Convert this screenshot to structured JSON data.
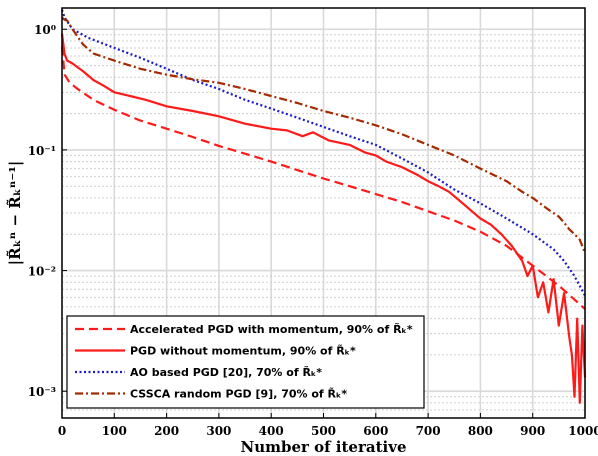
{
  "chart_data": {
    "type": "line",
    "xlabel": "Number of iterative",
    "ylabel": "|R̃ₖⁿ − R̃ₖⁿ⁻¹|",
    "xlim": [
      0,
      1000
    ],
    "ylim": [
      0.0006,
      1.5
    ],
    "yscale": "log",
    "grid": true,
    "legend_position": "bottom-left",
    "x_ticks": [
      "0",
      "100",
      "200",
      "300",
      "400",
      "500",
      "600",
      "700",
      "800",
      "900",
      "1000"
    ],
    "y_ticks": [
      {
        "value": 1,
        "label": "10⁰"
      },
      {
        "value": 0.1,
        "label": "10⁻¹"
      },
      {
        "value": 0.01,
        "label": "10⁻²"
      },
      {
        "value": 0.001,
        "label": "10⁻³"
      }
    ],
    "series": [
      {
        "name": "Accelerated PGD with momentum, 90% of R̃ₖ*",
        "color": "#ff1a1a",
        "dash": "dashed",
        "points": [
          [
            0,
            0.72
          ],
          [
            5,
            0.42
          ],
          [
            15,
            0.36
          ],
          [
            30,
            0.32
          ],
          [
            60,
            0.26
          ],
          [
            100,
            0.215
          ],
          [
            150,
            0.175
          ],
          [
            200,
            0.15
          ],
          [
            250,
            0.128
          ],
          [
            300,
            0.108
          ],
          [
            350,
            0.093
          ],
          [
            400,
            0.08
          ],
          [
            450,
            0.068
          ],
          [
            500,
            0.058
          ],
          [
            550,
            0.05
          ],
          [
            600,
            0.043
          ],
          [
            650,
            0.037
          ],
          [
            700,
            0.031
          ],
          [
            750,
            0.026
          ],
          [
            800,
            0.021
          ],
          [
            850,
            0.016
          ],
          [
            900,
            0.011
          ],
          [
            950,
            0.0075
          ],
          [
            975,
            0.006
          ],
          [
            1000,
            0.0048
          ]
        ]
      },
      {
        "name": "PGD without momentum, 90% of R̃ₖ*",
        "color": "#ff1a1a",
        "dash": "solid",
        "points": [
          [
            0,
            0.92
          ],
          [
            5,
            0.62
          ],
          [
            10,
            0.55
          ],
          [
            20,
            0.52
          ],
          [
            40,
            0.45
          ],
          [
            60,
            0.38
          ],
          [
            80,
            0.34
          ],
          [
            100,
            0.3
          ],
          [
            130,
            0.28
          ],
          [
            160,
            0.26
          ],
          [
            200,
            0.23
          ],
          [
            250,
            0.21
          ],
          [
            300,
            0.19
          ],
          [
            350,
            0.165
          ],
          [
            400,
            0.15
          ],
          [
            430,
            0.145
          ],
          [
            460,
            0.13
          ],
          [
            480,
            0.14
          ],
          [
            510,
            0.12
          ],
          [
            550,
            0.11
          ],
          [
            580,
            0.095
          ],
          [
            600,
            0.09
          ],
          [
            620,
            0.08
          ],
          [
            650,
            0.072
          ],
          [
            680,
            0.062
          ],
          [
            700,
            0.055
          ],
          [
            720,
            0.05
          ],
          [
            740,
            0.045
          ],
          [
            760,
            0.038
          ],
          [
            780,
            0.032
          ],
          [
            800,
            0.027
          ],
          [
            820,
            0.024
          ],
          [
            840,
            0.02
          ],
          [
            860,
            0.016
          ],
          [
            880,
            0.012
          ],
          [
            890,
            0.009
          ],
          [
            900,
            0.011
          ],
          [
            910,
            0.006
          ],
          [
            920,
            0.008
          ],
          [
            930,
            0.0045
          ],
          [
            940,
            0.0085
          ],
          [
            950,
            0.0035
          ],
          [
            960,
            0.0065
          ],
          [
            970,
            0.0028
          ],
          [
            975,
            0.002
          ],
          [
            980,
            0.0009
          ],
          [
            985,
            0.004
          ],
          [
            990,
            0.0008
          ],
          [
            995,
            0.0035
          ],
          [
            1000,
            0.0013
          ]
        ]
      },
      {
        "name": "AO based PGD [20], 70% of R̃ₖ*",
        "color": "#1a1acc",
        "dash": "dotted",
        "points": [
          [
            0,
            1.45
          ],
          [
            5,
            1.25
          ],
          [
            20,
            1.0
          ],
          [
            50,
            0.85
          ],
          [
            100,
            0.7
          ],
          [
            150,
            0.58
          ],
          [
            200,
            0.47
          ],
          [
            250,
            0.38
          ],
          [
            300,
            0.32
          ],
          [
            350,
            0.26
          ],
          [
            400,
            0.22
          ],
          [
            450,
            0.185
          ],
          [
            500,
            0.155
          ],
          [
            550,
            0.13
          ],
          [
            600,
            0.11
          ],
          [
            650,
            0.085
          ],
          [
            700,
            0.065
          ],
          [
            750,
            0.047
          ],
          [
            800,
            0.036
          ],
          [
            850,
            0.027
          ],
          [
            900,
            0.02
          ],
          [
            940,
            0.015
          ],
          [
            960,
            0.012
          ],
          [
            980,
            0.009
          ],
          [
            1000,
            0.0062
          ]
        ]
      },
      {
        "name": "CSSCA random PGD [9], 70% of R̃ₖ*",
        "color": "#a52a00",
        "dash": "dashdot",
        "points": [
          [
            0,
            1.25
          ],
          [
            5,
            1.2
          ],
          [
            10,
            1.18
          ],
          [
            20,
            1.0
          ],
          [
            40,
            0.75
          ],
          [
            60,
            0.63
          ],
          [
            100,
            0.55
          ],
          [
            150,
            0.47
          ],
          [
            200,
            0.42
          ],
          [
            250,
            0.385
          ],
          [
            300,
            0.36
          ],
          [
            350,
            0.32
          ],
          [
            400,
            0.28
          ],
          [
            450,
            0.245
          ],
          [
            500,
            0.21
          ],
          [
            550,
            0.185
          ],
          [
            600,
            0.16
          ],
          [
            650,
            0.135
          ],
          [
            700,
            0.11
          ],
          [
            750,
            0.09
          ],
          [
            800,
            0.07
          ],
          [
            850,
            0.055
          ],
          [
            880,
            0.045
          ],
          [
            900,
            0.04
          ],
          [
            930,
            0.032
          ],
          [
            950,
            0.028
          ],
          [
            960,
            0.025
          ],
          [
            970,
            0.022
          ],
          [
            980,
            0.02
          ],
          [
            990,
            0.018
          ],
          [
            1000,
            0.014
          ]
        ]
      }
    ]
  }
}
